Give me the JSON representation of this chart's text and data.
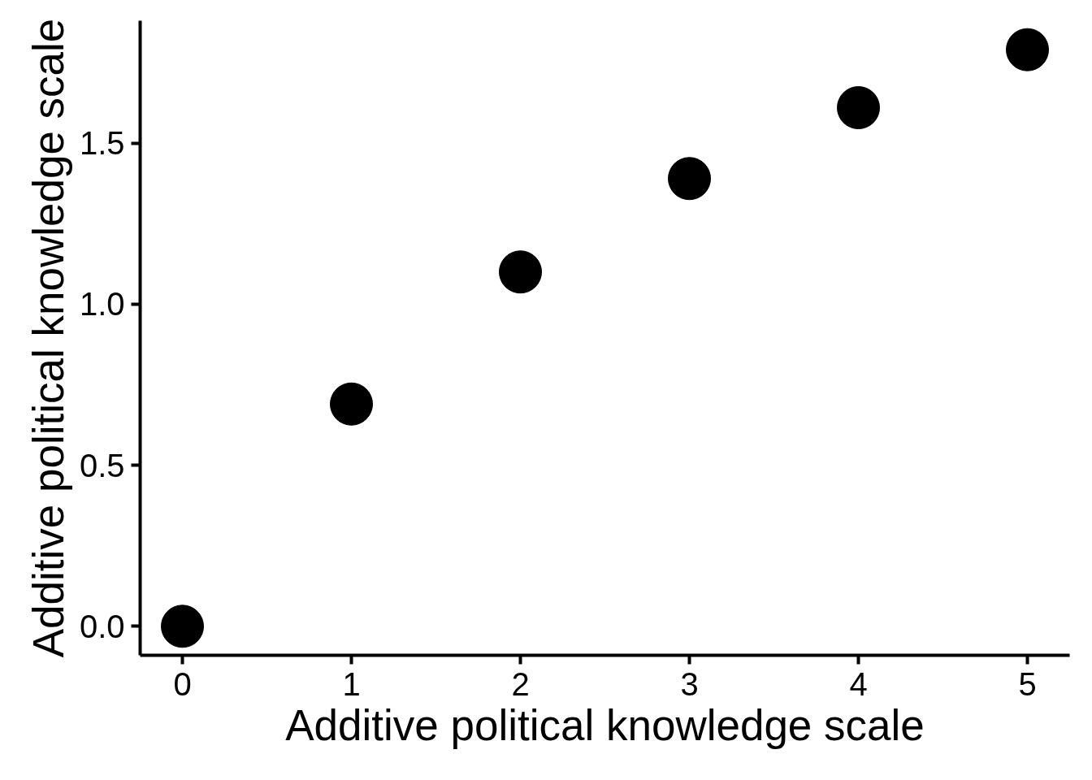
{
  "chart_data": {
    "type": "scatter",
    "xlabel": "Additive political knowledge scale",
    "ylabel": "Additive political knowledge scale",
    "x": [
      0,
      1,
      2,
      3,
      4,
      5
    ],
    "values": [
      0,
      0.69,
      1.1,
      1.39,
      1.61,
      1.79
    ],
    "color": "#000000",
    "marker": "circle",
    "xlim": [
      -0.25,
      5.25
    ],
    "ylim": [
      -0.09,
      1.88
    ],
    "xticks": [
      0,
      1,
      2,
      3,
      4,
      5
    ],
    "yticks": [
      {
        "value": 0,
        "label": "0.0"
      },
      0.5,
      {
        "value": 1,
        "label": "1.0"
      },
      1.5
    ]
  }
}
